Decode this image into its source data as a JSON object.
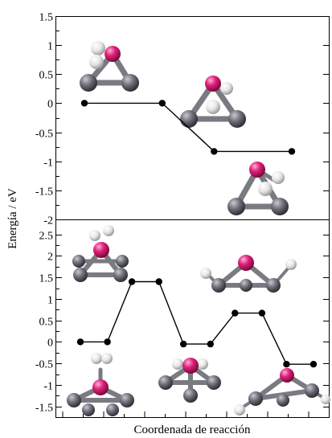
{
  "chart_data": [
    {
      "type": "line",
      "panel": "top",
      "ylabel": "Energía / eV",
      "ylim": [
        -2,
        1.5
      ],
      "y_ticks": [
        1.5,
        1,
        0.5,
        0,
        -0.5,
        -1,
        -1.5,
        -2
      ],
      "y_tick_labels": [
        "1.5",
        "1",
        "0.5",
        "0",
        "-0.5",
        "-1",
        "-1.5",
        "-2"
      ],
      "series": [
        {
          "x": [
            0.0,
            0.3,
            0.6,
            1.0,
            1.3,
            1.6
          ],
          "y": [
            0,
            0,
            0,
            -0.83,
            -0.83,
            -0.83
          ]
        }
      ],
      "markers": [
        {
          "x": 0.0,
          "y": 0
        },
        {
          "x": 0.6,
          "y": 0
        },
        {
          "x": 1.0,
          "y": -0.83
        },
        {
          "x": 1.6,
          "y": -0.83
        }
      ],
      "structures": [
        "reactant",
        "intermediate",
        "product"
      ],
      "grid": false
    },
    {
      "type": "line",
      "panel": "bottom",
      "xlabel": "Coordenada de reacción",
      "ylim": [
        -1.75,
        2.85
      ],
      "y_ticks": [
        2.5,
        2,
        1.5,
        1,
        0.5,
        0,
        -0.5,
        -1,
        -1.5
      ],
      "y_tick_labels": [
        "2.5",
        "2",
        "1.5",
        "1",
        "0.5",
        "0",
        "-0.5",
        "-1",
        "-1.5"
      ],
      "series": [
        {
          "x": [
            0.0,
            0.33,
            0.63,
            0.96,
            1.26,
            1.59,
            1.89,
            2.22,
            2.52,
            2.85
          ],
          "y": [
            0,
            0,
            1.4,
            1.4,
            -0.05,
            -0.05,
            0.67,
            0.67,
            -0.52,
            -0.52
          ]
        }
      ],
      "structures": [
        "state-1",
        "ts-1",
        "state-2",
        "ts-2",
        "state-3"
      ],
      "grid": false
    }
  ],
  "colors": {
    "metal": "#e0207a",
    "carbon": "#6e6e78",
    "hydrogen": "#e6e6e6"
  }
}
